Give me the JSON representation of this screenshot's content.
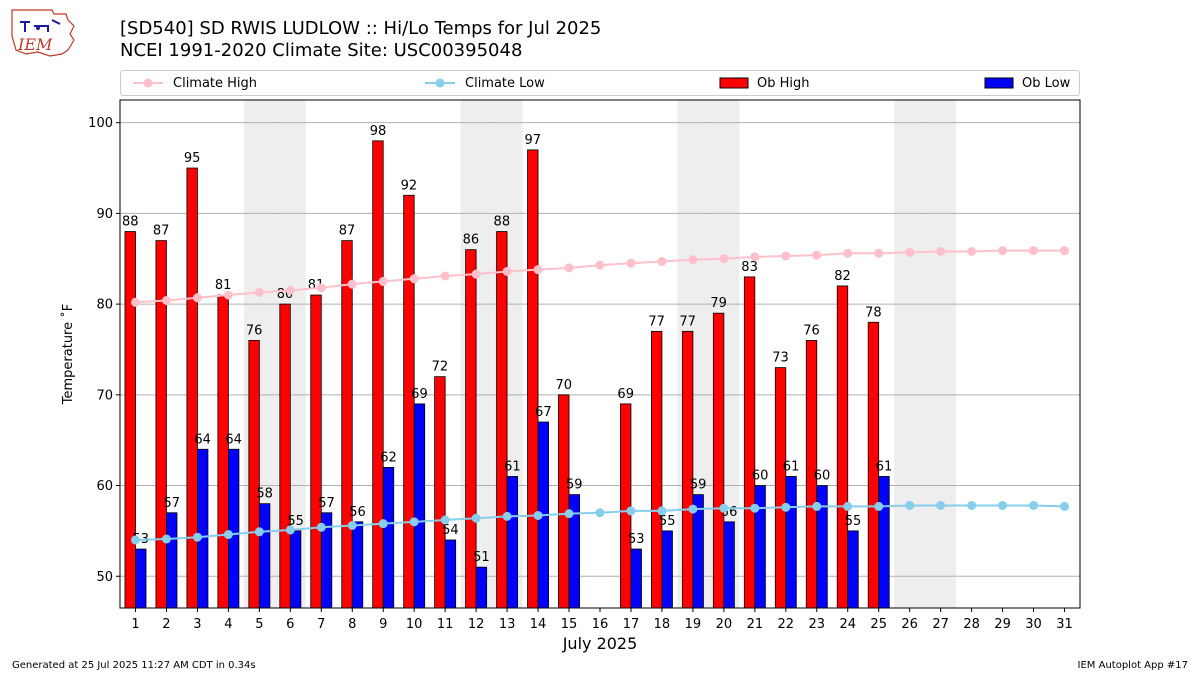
{
  "header": {
    "title_line1": "[SD540] SD RWIS LUDLOW :: Hi/Lo Temps for Jul 2025",
    "title_line2": "NCEI 1991-2020 Climate Site: USC00395048"
  },
  "logo": {
    "text": "IEM"
  },
  "legend": {
    "climate_high": "Climate High",
    "climate_low": "Climate Low",
    "ob_high": "Ob High",
    "ob_low": "Ob Low"
  },
  "footer": {
    "generated": "Generated at 25 Jul 2025 11:27 AM CDT in 0.34s",
    "app": "IEM Autoplot App #17"
  },
  "colors": {
    "ob_high": "#ff0000",
    "ob_low": "#0000ff",
    "climate_high": "#ffc0cb",
    "climate_low": "#87ceeb",
    "weekend_shade": "#eeeeee"
  },
  "chart_data": {
    "type": "bar",
    "xlabel": "July 2025",
    "ylabel": "Temperature ˚F",
    "ylim": [
      46.5,
      102.5
    ],
    "yticks": [
      50,
      60,
      70,
      80,
      90,
      100
    ],
    "grid": "y",
    "legend_position": "top",
    "days": [
      1,
      2,
      3,
      4,
      5,
      6,
      7,
      8,
      9,
      10,
      11,
      12,
      13,
      14,
      15,
      16,
      17,
      18,
      19,
      20,
      21,
      22,
      23,
      24,
      25,
      26,
      27,
      28,
      29,
      30,
      31
    ],
    "shaded_days": [
      5,
      6,
      12,
      13,
      19,
      20,
      26,
      27
    ],
    "series": [
      {
        "name": "Ob High",
        "values": [
          88,
          87,
          95,
          81,
          76,
          80,
          81,
          87,
          98,
          92,
          72,
          86,
          88,
          97,
          70,
          null,
          69,
          77,
          77,
          79,
          83,
          73,
          76,
          82,
          78,
          null,
          null,
          null,
          null,
          null,
          null
        ]
      },
      {
        "name": "Ob Low",
        "values": [
          53,
          57,
          64,
          64,
          58,
          55,
          57,
          56,
          62,
          69,
          54,
          51,
          61,
          67,
          59,
          null,
          53,
          55,
          59,
          56,
          60,
          61,
          60,
          55,
          61,
          null,
          null,
          null,
          null,
          null,
          null
        ]
      },
      {
        "name": "Climate High",
        "values": [
          80.2,
          80.4,
          80.7,
          81.0,
          81.3,
          81.5,
          81.8,
          82.2,
          82.5,
          82.8,
          83.1,
          83.3,
          83.6,
          83.8,
          84.0,
          84.3,
          84.5,
          84.7,
          84.9,
          85.0,
          85.2,
          85.3,
          85.4,
          85.6,
          85.6,
          85.7,
          85.8,
          85.8,
          85.9,
          85.9,
          85.9
        ]
      },
      {
        "name": "Climate Low",
        "values": [
          54.0,
          54.1,
          54.3,
          54.6,
          54.9,
          55.1,
          55.4,
          55.6,
          55.8,
          56.0,
          56.2,
          56.4,
          56.6,
          56.7,
          56.9,
          57.0,
          57.2,
          57.2,
          57.4,
          57.5,
          57.5,
          57.6,
          57.7,
          57.7,
          57.7,
          57.8,
          57.8,
          57.8,
          57.8,
          57.8,
          57.7
        ]
      }
    ]
  }
}
